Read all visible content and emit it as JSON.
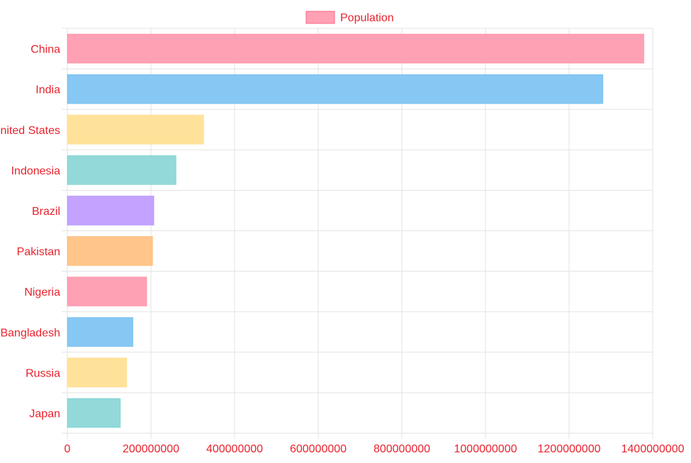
{
  "chart_data": {
    "type": "bar",
    "orientation": "horizontal",
    "legend": {
      "label": "Population",
      "position": "top"
    },
    "series": [
      {
        "name": "Population",
        "values": [
          1379000000,
          1281000000,
          326000000,
          260000000,
          207000000,
          204000000,
          190000000,
          157000000,
          142000000,
          127000000
        ]
      }
    ],
    "categories": [
      "China",
      "India",
      "United States",
      "Indonesia",
      "Brazil",
      "Pakistan",
      "Nigeria",
      "Bangladesh",
      "Russia",
      "Japan"
    ],
    "bar_colors": [
      "#ffa1b5",
      "#86c7f3",
      "#ffe29a",
      "#93d9d9",
      "#c3a3ff",
      "#ffc58a",
      "#ffa1b5",
      "#86c7f3",
      "#ffe29a",
      "#93d9d9"
    ],
    "bar_border_colors": [
      "#ff6384",
      "#36a2eb",
      "#ffce56",
      "#4bc0c0",
      "#9966ff",
      "#ff9f40",
      "#ff6384",
      "#36a2eb",
      "#ffce56",
      "#4bc0c0"
    ],
    "xlim": [
      0,
      1400000000
    ],
    "xticks": [
      "0",
      "200000000",
      "400000000",
      "600000000",
      "800000000",
      "1000000000",
      "1200000000",
      "1400000000"
    ],
    "grid": true,
    "label_color": "#e8232e"
  }
}
